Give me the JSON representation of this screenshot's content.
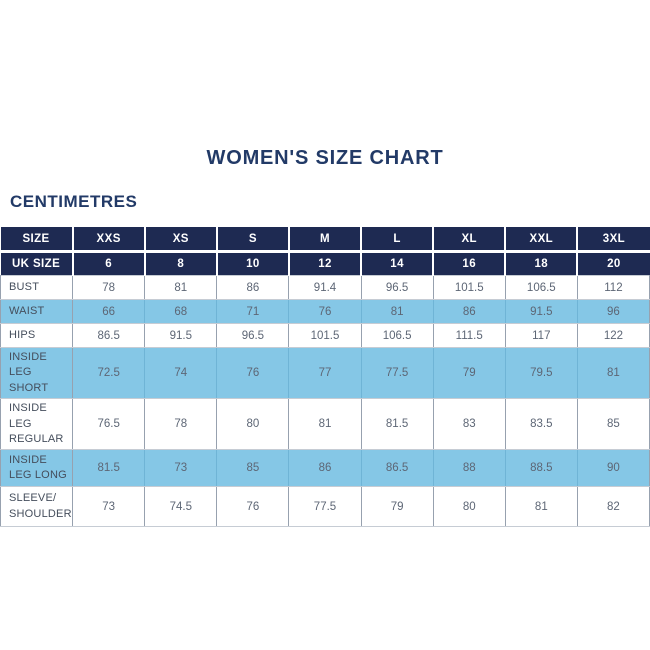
{
  "page": {
    "title": "WOMEN'S SIZE CHART",
    "unit_label": "CENTIMETRES"
  },
  "colors": {
    "header_bg": "#1e2a52",
    "row_blue": "#85c7e6",
    "title_text": "#223a67",
    "label_text": "#454e5c",
    "value_text": "#5d6675",
    "grid_line": "#97a1af"
  },
  "chart_data": {
    "type": "table",
    "title": "WOMEN'S SIZE CHART",
    "unit": "CENTIMETRES",
    "header_rows": [
      {
        "label": "SIZE",
        "values": [
          "XXS",
          "XS",
          "S",
          "M",
          "L",
          "XL",
          "XXL",
          "3XL"
        ]
      },
      {
        "label": "UK SIZE",
        "values": [
          "6",
          "8",
          "10",
          "12",
          "14",
          "16",
          "18",
          "20"
        ]
      }
    ],
    "rows": [
      {
        "label": "BUST",
        "values": [
          "78",
          "81",
          "86",
          "91.4",
          "96.5",
          "101.5",
          "106.5",
          "112"
        ]
      },
      {
        "label": "WAIST",
        "values": [
          "66",
          "68",
          "71",
          "76",
          "81",
          "86",
          "91.5",
          "96"
        ]
      },
      {
        "label": "HIPS",
        "values": [
          "86.5",
          "91.5",
          "96.5",
          "101.5",
          "106.5",
          "111.5",
          "117",
          "122"
        ]
      },
      {
        "label": "INSIDE LEG SHORT",
        "values": [
          "72.5",
          "74",
          "76",
          "77",
          "77.5",
          "79",
          "79.5",
          "81"
        ]
      },
      {
        "label": "INSIDE LEG REGULAR",
        "values": [
          "76.5",
          "78",
          "80",
          "81",
          "81.5",
          "83",
          "83.5",
          "85"
        ]
      },
      {
        "label": "INSIDE LEG LONG",
        "values": [
          "81.5",
          "73",
          "85",
          "86",
          "86.5",
          "88",
          "88.5",
          "90"
        ]
      },
      {
        "label": "SLEEVE/ SHOULDER",
        "values": [
          "73",
          "74.5",
          "76",
          "77.5",
          "79",
          "80",
          "81",
          "82"
        ]
      }
    ]
  }
}
